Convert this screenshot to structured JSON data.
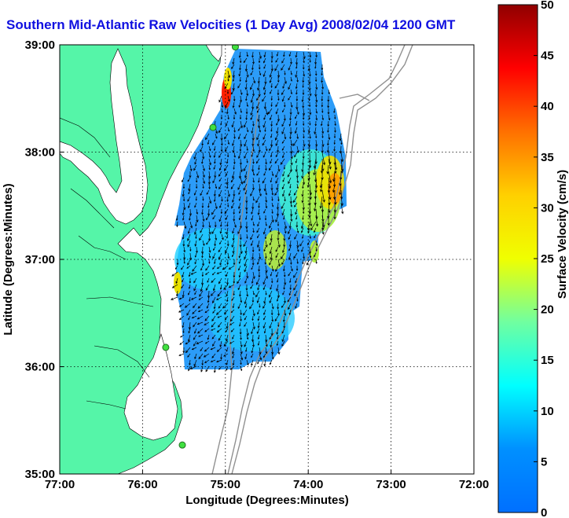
{
  "chart_data": {
    "type": "heatmap",
    "title": "Southern Mid-Atlantic Raw Velocities (1 Day Avg) 2008/02/04 1200 GMT",
    "xlabel": "Longitude (Degrees:Minutes)",
    "ylabel": "Latitude (Degrees:Minutes)",
    "xlim": [
      -77,
      -72
    ],
    "ylim": [
      35,
      39
    ],
    "x_ticks": [
      "77:00",
      "76:00",
      "75:00",
      "74:00",
      "73:00",
      "72:00"
    ],
    "y_ticks": [
      "35:00",
      "36:00",
      "37:00",
      "38:00",
      "39:00"
    ],
    "grid": true,
    "colorbar": {
      "label": "Surface Velocity (cm/s)",
      "min": 0,
      "max": 50,
      "ticks": [
        "0",
        "5",
        "10",
        "15",
        "20",
        "25",
        "30",
        "35",
        "40",
        "45",
        "50"
      ],
      "colormap": "jet"
    },
    "stations": [
      {
        "lon": -74.88,
        "lat": 38.98
      },
      {
        "lon": -75.15,
        "lat": 38.23
      },
      {
        "lon": -75.72,
        "lat": 36.18
      },
      {
        "lon": -75.52,
        "lat": 35.27
      }
    ]
  },
  "colors": {
    "title": "#1010e0",
    "land": "#55f5a8",
    "bathymetry": "#909090",
    "arrows": "#000000"
  }
}
